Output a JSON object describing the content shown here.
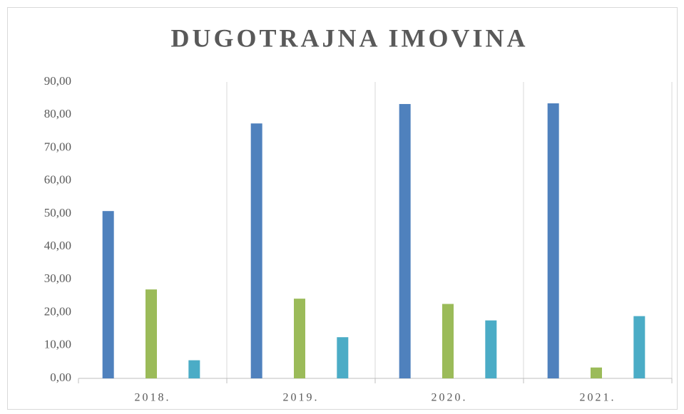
{
  "chart_data": {
    "type": "bar",
    "title": "DUGOTRAJNA IMOVINA",
    "categories": [
      "2018.",
      "2019.",
      "2020.",
      "2021."
    ],
    "series": [
      {
        "color": "#4f81bd",
        "values": [
          50.8,
          77.4,
          83.3,
          83.5
        ]
      },
      {
        "color": "#9bbb59",
        "values": [
          27.0,
          24.2,
          22.6,
          3.3
        ]
      },
      {
        "color": "#4bacc6",
        "values": [
          5.5,
          12.5,
          17.6,
          18.9
        ]
      }
    ],
    "ylim": [
      0,
      90
    ],
    "yticks": [
      {
        "value": 0,
        "label": "0,00"
      },
      {
        "value": 10,
        "label": "10,00"
      },
      {
        "value": 20,
        "label": "20,00"
      },
      {
        "value": 30,
        "label": "30,00"
      },
      {
        "value": 40,
        "label": "40,00"
      },
      {
        "value": 50,
        "label": "50,00"
      },
      {
        "value": 60,
        "label": "60,00"
      },
      {
        "value": 70,
        "label": "70,00"
      },
      {
        "value": 80,
        "label": "80,00"
      },
      {
        "value": 90,
        "label": "90,00"
      }
    ],
    "grid": true
  }
}
